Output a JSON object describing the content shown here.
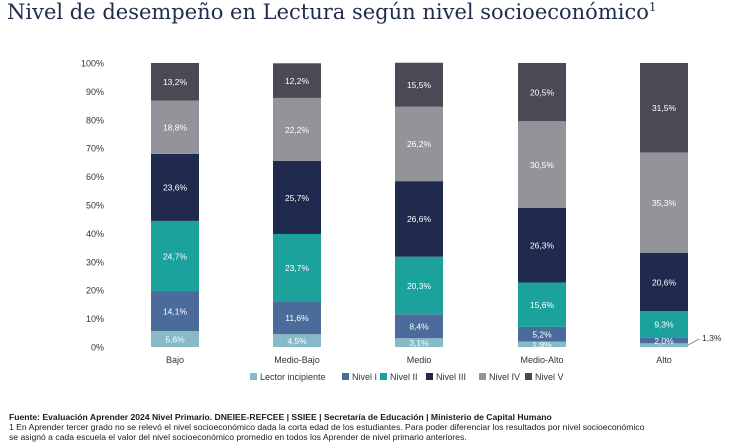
{
  "title": "Nivel de desempeño en Lectura según nivel socioeconómico",
  "title_sup": "1",
  "chart_data": {
    "type": "bar",
    "stacked": true,
    "categories": [
      "Bajo",
      "Medio-Bajo",
      "Medio",
      "Medio-Alto",
      "Alto"
    ],
    "ylim": [
      0,
      100
    ],
    "yticks": [
      "0%",
      "10%",
      "20%",
      "30%",
      "40%",
      "50%",
      "60%",
      "70%",
      "80%",
      "90%",
      "100%"
    ],
    "series": [
      {
        "name": "Lector incipiente",
        "color": "#86bac8",
        "values": [
          5.6,
          4.5,
          3.1,
          1.9,
          1.3
        ],
        "labels": [
          "5,6%",
          "4,5%",
          "3,1%",
          "1,9%",
          "1,3%"
        ]
      },
      {
        "name": "Nivel I",
        "color": "#4b6b9b",
        "values": [
          14.1,
          11.6,
          8.4,
          5.2,
          2.0
        ],
        "labels": [
          "14,1%",
          "11,6%",
          "8,4%",
          "5,2%",
          "2,0%"
        ]
      },
      {
        "name": "Nivel II",
        "color": "#1ba29d",
        "values": [
          24.7,
          23.7,
          20.3,
          15.6,
          9.3
        ],
        "labels": [
          "24,7%",
          "23,7%",
          "20,3%",
          "15,6%",
          "9,3%"
        ]
      },
      {
        "name": "Nivel III",
        "color": "#1f2a4e",
        "values": [
          23.6,
          25.7,
          26.6,
          26.3,
          20.6
        ],
        "labels": [
          "23,6%",
          "25,7%",
          "26,6%",
          "26,3%",
          "20,6%"
        ]
      },
      {
        "name": "Nivel IV",
        "color": "#939399",
        "values": [
          18.8,
          22.2,
          26.2,
          30.5,
          35.3
        ],
        "labels": [
          "18,8%",
          "22,2%",
          "26,2%",
          "30,5%",
          "35,3%"
        ]
      },
      {
        "name": "Nivel V",
        "color": "#4a4a55",
        "values": [
          13.2,
          12.2,
          15.5,
          20.5,
          31.5
        ],
        "labels": [
          "13,2%",
          "12,2%",
          "15,5%",
          "20,5%",
          "31,5%"
        ]
      }
    ],
    "callout": "1,3%",
    "legend_position": "bottom",
    "grid": false
  },
  "footer": {
    "source": "Fuente: Evaluación Aprender 2024 Nivel Primario. DNEIEE-REFCEE | SSIEE | Secretaría de Educación | Ministerio de Capital Humano",
    "note1": "1 En Aprender tercer grado no se relevó el nivel socioeconómico dada la corta edad de los estudiantes. Para poder diferenciar los resultados por nivel socioeconómico",
    "note2": "se asignó a cada escuela el valor del nivel socioeconómico promedio en todos los Aprender de nivel primario anteriores."
  }
}
